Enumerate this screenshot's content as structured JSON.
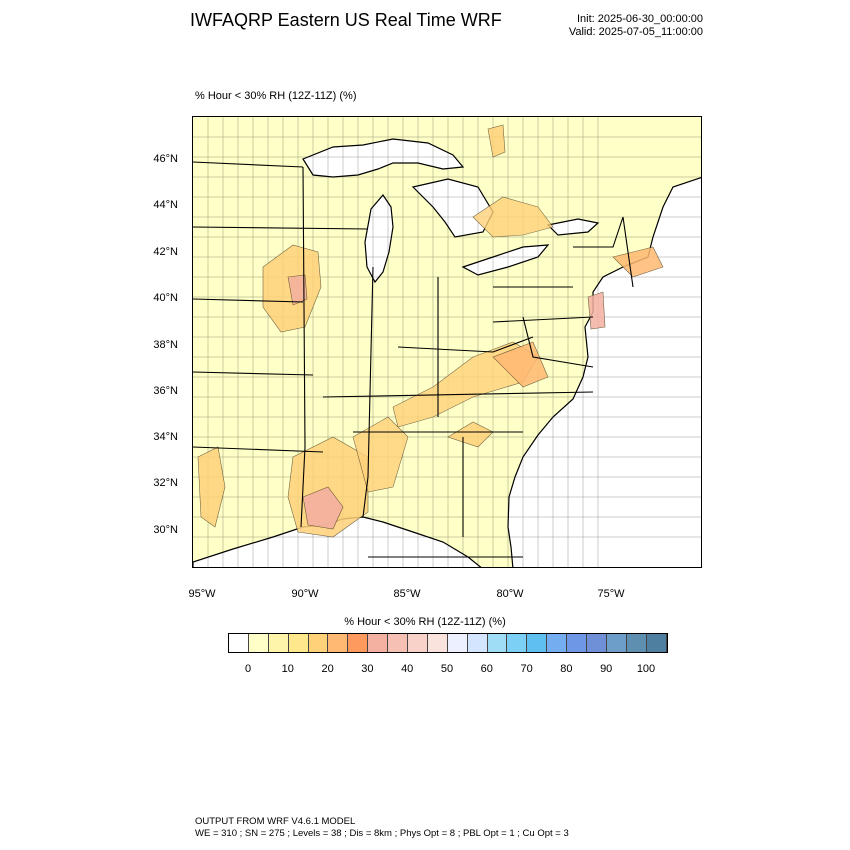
{
  "header": {
    "title": "IWFAQRP Eastern US Real Time WRF",
    "init": "Init: 2025-06-30_00:00:00",
    "valid": "Valid: 2025-07-05_11:00:00"
  },
  "panel": {
    "label": "% Hour < 30% RH (12Z-11Z)   (%)"
  },
  "axes": {
    "lat_labels": [
      "46°N",
      "44°N",
      "42°N",
      "40°N",
      "38°N",
      "36°N",
      "34°N",
      "32°N",
      "30°N"
    ],
    "lon_labels": [
      "95°W",
      "90°W",
      "85°W",
      "80°W",
      "75°W"
    ]
  },
  "colorbar": {
    "title": "% Hour < 30% RH (12Z-11Z)  (%)",
    "labels": [
      "0",
      "10",
      "20",
      "30",
      "40",
      "50",
      "60",
      "70",
      "80",
      "90",
      "100"
    ],
    "colors": [
      "#ffffff",
      "#ffffc8",
      "#fff5aa",
      "#ffe88c",
      "#ffd27a",
      "#ffb972",
      "#ff9a5e",
      "#f4b0a0",
      "#f6c1b4",
      "#f8d2c8",
      "#fae3dc",
      "#ecf0ff",
      "#d4e6ff",
      "#9fdcf5",
      "#7dd0f5",
      "#5fc0f0",
      "#74aef0",
      "#6e98e6",
      "#6f90d6",
      "#6d9dc9",
      "#5f8fb0",
      "#4f7fa0"
    ]
  },
  "footer": {
    "line1": "OUTPUT FROM WRF V4.6.1 MODEL",
    "line2": "WE = 310 ; SN = 275 ; Levels = 38 ; Dis = 8km ; Phys Opt = 8 ; PBL Opt = 1 ; Cu Opt = 3"
  }
}
